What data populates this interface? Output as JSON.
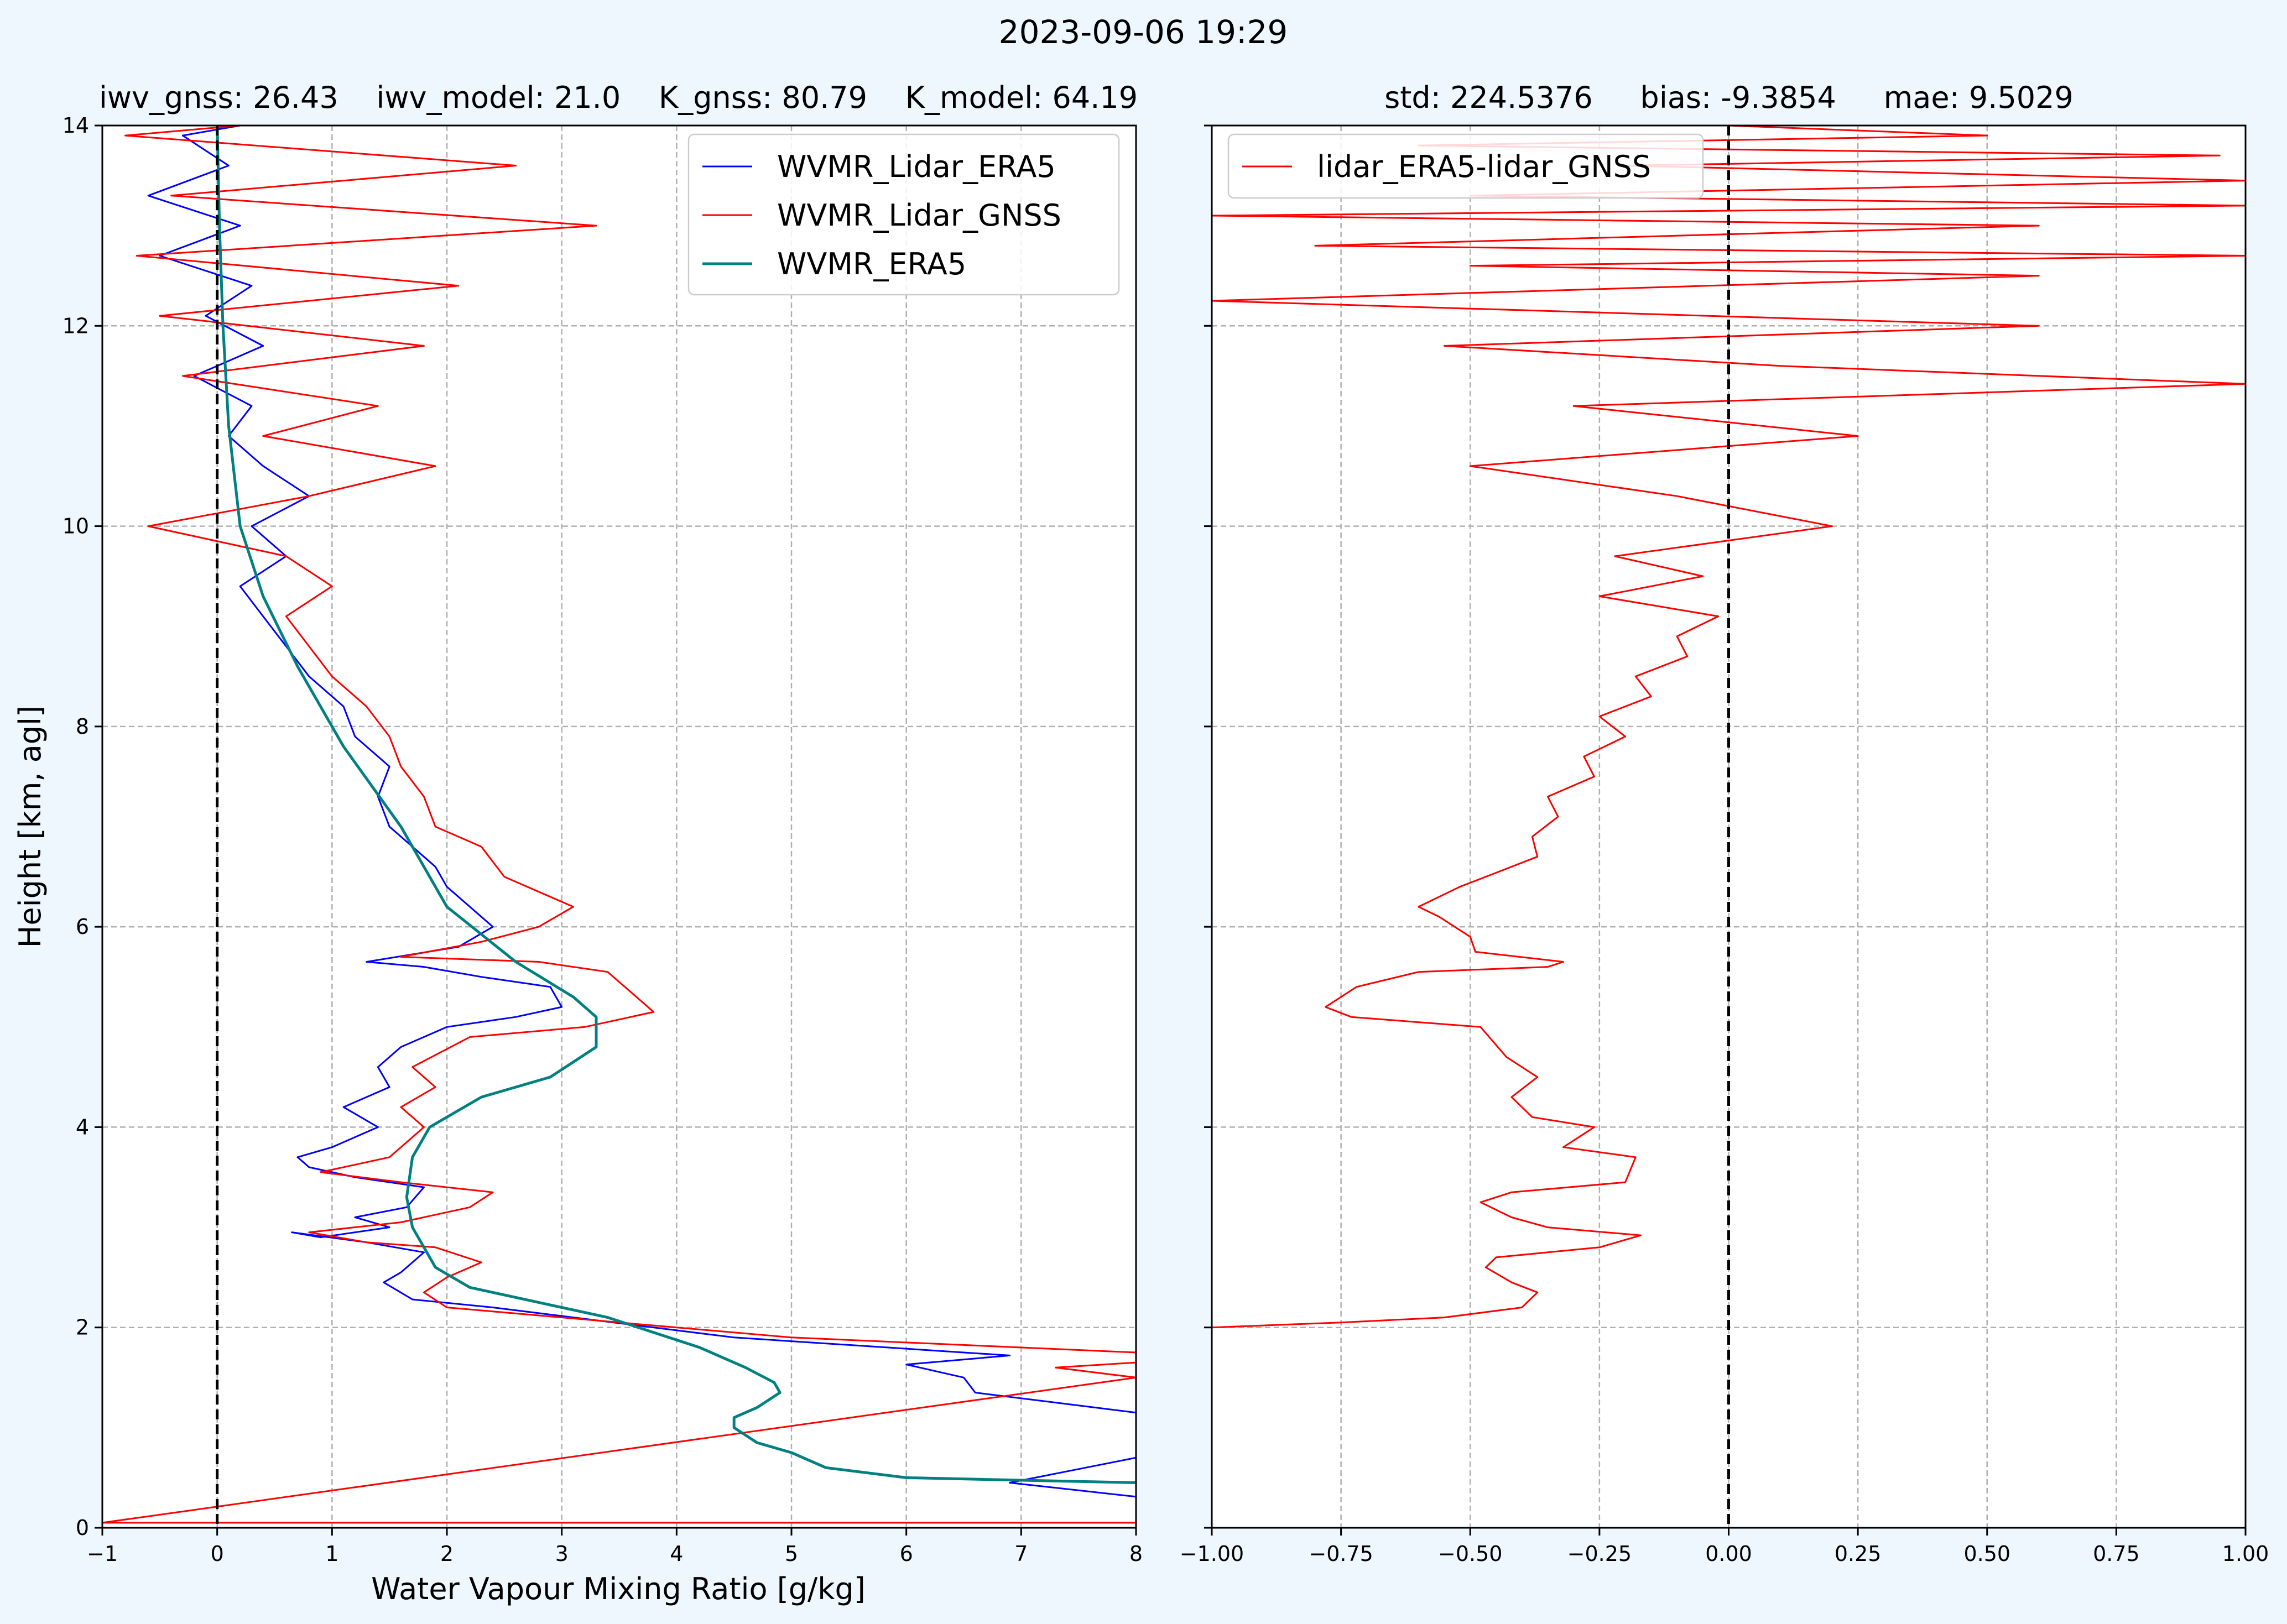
{
  "suptitle": "2023-09-06 19:29",
  "colors": {
    "background": "#eef6fe",
    "lidar_era5": "#0000ff",
    "lidar_gnss": "#ff0000",
    "era5": "#008080",
    "grid": "#b0b0b0"
  },
  "chart_data": [
    {
      "type": "line",
      "title": "iwv_gnss: 26.43    iwv_model: 21.0    K_gnss: 80.79    K_model: 64.19",
      "xlabel": "Water Vapour Mixing Ratio [g/kg]",
      "ylabel": "Height [km, agl]",
      "xlim": [
        -1,
        8
      ],
      "ylim": [
        0,
        14
      ],
      "xticks": [
        "−1",
        "0",
        "1",
        "2",
        "3",
        "4",
        "5",
        "6",
        "7",
        "8"
      ],
      "yticks": [
        "0",
        "2",
        "4",
        "6",
        "8",
        "10",
        "12",
        "14"
      ],
      "grid": true,
      "legend": "top-right",
      "vline_x": 0,
      "series": [
        {
          "name": "WVMR_Lidar_ERA5",
          "color": "#0000ff",
          "points": [
            [
              8.0,
              0.31
            ],
            [
              6.9,
              0.45
            ],
            [
              8.0,
              0.7
            ],
            [
              8.0,
              1.15
            ],
            [
              6.6,
              1.35
            ],
            [
              6.5,
              1.5
            ],
            [
              6.0,
              1.63
            ],
            [
              6.9,
              1.72
            ],
            [
              4.5,
              1.9
            ],
            [
              2.4,
              2.2
            ],
            [
              1.7,
              2.28
            ],
            [
              1.45,
              2.45
            ],
            [
              1.6,
              2.55
            ],
            [
              1.8,
              2.75
            ],
            [
              1.3,
              2.85
            ],
            [
              0.65,
              2.95
            ],
            [
              0.9,
              2.9
            ],
            [
              1.5,
              3.0
            ],
            [
              1.2,
              3.1
            ],
            [
              1.65,
              3.2
            ],
            [
              1.8,
              3.4
            ],
            [
              1.2,
              3.5
            ],
            [
              0.8,
              3.6
            ],
            [
              0.7,
              3.7
            ],
            [
              1.0,
              3.8
            ],
            [
              1.2,
              3.9
            ],
            [
              1.4,
              4.0
            ],
            [
              1.1,
              4.2
            ],
            [
              1.5,
              4.4
            ],
            [
              1.4,
              4.6
            ],
            [
              1.6,
              4.8
            ],
            [
              2.0,
              5.0
            ],
            [
              2.6,
              5.1
            ],
            [
              3.0,
              5.2
            ],
            [
              2.9,
              5.4
            ],
            [
              2.3,
              5.5
            ],
            [
              1.8,
              5.6
            ],
            [
              1.3,
              5.65
            ],
            [
              2.1,
              5.8
            ],
            [
              2.4,
              6.0
            ],
            [
              2.2,
              6.2
            ],
            [
              2.0,
              6.4
            ],
            [
              1.9,
              6.6
            ],
            [
              1.7,
              6.8
            ],
            [
              1.5,
              7.0
            ],
            [
              1.4,
              7.3
            ],
            [
              1.5,
              7.6
            ],
            [
              1.2,
              7.9
            ],
            [
              1.1,
              8.2
            ],
            [
              0.8,
              8.5
            ],
            [
              0.6,
              8.8
            ],
            [
              0.4,
              9.1
            ],
            [
              0.2,
              9.4
            ],
            [
              0.6,
              9.7
            ],
            [
              0.3,
              10.0
            ],
            [
              0.8,
              10.3
            ],
            [
              0.4,
              10.6
            ],
            [
              0.1,
              10.9
            ],
            [
              0.3,
              11.2
            ],
            [
              -0.2,
              11.5
            ],
            [
              0.4,
              11.8
            ],
            [
              -0.1,
              12.1
            ],
            [
              0.3,
              12.4
            ],
            [
              -0.5,
              12.7
            ],
            [
              0.2,
              13.0
            ],
            [
              -0.6,
              13.3
            ],
            [
              0.1,
              13.6
            ],
            [
              -0.3,
              13.9
            ],
            [
              0.2,
              14.0
            ]
          ]
        },
        {
          "name": "WVMR_Lidar_GNSS",
          "color": "#ff0000",
          "points": [
            [
              8.0,
              0.05
            ],
            [
              -1.0,
              0.05
            ],
            [
              8.0,
              1.5
            ],
            [
              7.3,
              1.6
            ],
            [
              8.0,
              1.65
            ],
            [
              8.0,
              1.75
            ],
            [
              5.0,
              1.9
            ],
            [
              3.0,
              2.1
            ],
            [
              2.0,
              2.2
            ],
            [
              1.8,
              2.35
            ],
            [
              2.0,
              2.5
            ],
            [
              2.3,
              2.65
            ],
            [
              1.9,
              2.8
            ],
            [
              1.3,
              2.85
            ],
            [
              0.8,
              2.95
            ],
            [
              1.6,
              3.05
            ],
            [
              2.2,
              3.2
            ],
            [
              2.4,
              3.35
            ],
            [
              1.6,
              3.45
            ],
            [
              0.9,
              3.55
            ],
            [
              1.5,
              3.7
            ],
            [
              1.8,
              4.0
            ],
            [
              1.6,
              4.2
            ],
            [
              1.9,
              4.4
            ],
            [
              1.7,
              4.6
            ],
            [
              2.2,
              4.9
            ],
            [
              3.2,
              5.0
            ],
            [
              3.8,
              5.15
            ],
            [
              3.6,
              5.35
            ],
            [
              3.4,
              5.55
            ],
            [
              2.8,
              5.65
            ],
            [
              1.6,
              5.7
            ],
            [
              2.3,
              5.85
            ],
            [
              2.8,
              6.0
            ],
            [
              3.1,
              6.2
            ],
            [
              2.5,
              6.5
            ],
            [
              2.3,
              6.8
            ],
            [
              1.9,
              7.0
            ],
            [
              1.8,
              7.3
            ],
            [
              1.6,
              7.6
            ],
            [
              1.5,
              7.9
            ],
            [
              1.3,
              8.2
            ],
            [
              1.0,
              8.5
            ],
            [
              0.8,
              8.8
            ],
            [
              0.6,
              9.1
            ],
            [
              1.0,
              9.4
            ],
            [
              0.6,
              9.7
            ],
            [
              -0.6,
              10.0
            ],
            [
              0.8,
              10.3
            ],
            [
              1.9,
              10.6
            ],
            [
              0.4,
              10.9
            ],
            [
              1.4,
              11.2
            ],
            [
              -0.3,
              11.5
            ],
            [
              1.8,
              11.8
            ],
            [
              -0.5,
              12.1
            ],
            [
              2.1,
              12.4
            ],
            [
              -0.7,
              12.7
            ],
            [
              3.3,
              13.0
            ],
            [
              -0.4,
              13.3
            ],
            [
              2.6,
              13.6
            ],
            [
              -0.8,
              13.9
            ],
            [
              0.2,
              14.0
            ]
          ]
        },
        {
          "name": "WVMR_ERA5",
          "color": "#008080",
          "points": [
            [
              8.0,
              0.45
            ],
            [
              6.0,
              0.5
            ],
            [
              5.3,
              0.6
            ],
            [
              5.0,
              0.75
            ],
            [
              4.7,
              0.85
            ],
            [
              4.5,
              1.0
            ],
            [
              4.5,
              1.1
            ],
            [
              4.7,
              1.2
            ],
            [
              4.9,
              1.35
            ],
            [
              4.85,
              1.45
            ],
            [
              4.6,
              1.6
            ],
            [
              4.2,
              1.8
            ],
            [
              3.4,
              2.1
            ],
            [
              2.2,
              2.4
            ],
            [
              1.9,
              2.6
            ],
            [
              1.8,
              2.8
            ],
            [
              1.7,
              3.0
            ],
            [
              1.65,
              3.3
            ],
            [
              1.7,
              3.7
            ],
            [
              1.85,
              4.0
            ],
            [
              2.3,
              4.3
            ],
            [
              2.9,
              4.5
            ],
            [
              3.3,
              4.8
            ],
            [
              3.3,
              5.1
            ],
            [
              3.1,
              5.3
            ],
            [
              2.6,
              5.65
            ],
            [
              2.0,
              6.2
            ],
            [
              1.6,
              7.0
            ],
            [
              1.1,
              7.8
            ],
            [
              0.7,
              8.6
            ],
            [
              0.4,
              9.3
            ],
            [
              0.2,
              10.0
            ],
            [
              0.1,
              11.0
            ],
            [
              0.05,
              12.0
            ],
            [
              0.02,
              13.0
            ],
            [
              0.0,
              14.0
            ]
          ]
        }
      ]
    },
    {
      "type": "line",
      "title": "std: 224.5376     bias: -9.3854     mae: 9.5029",
      "xlim": [
        -1.0,
        1.0
      ],
      "ylim": [
        0,
        14
      ],
      "xticks": [
        "−1.00",
        "−0.75",
        "−0.50",
        "−0.25",
        "0.00",
        "0.25",
        "0.50",
        "0.75",
        "1.00"
      ],
      "grid": true,
      "legend": "top-left",
      "vline_x": 0,
      "series": [
        {
          "name": "lidar_ERA5-lidar_GNSS",
          "color": "#ff0000",
          "points": [
            [
              -1.0,
              2.0
            ],
            [
              -0.75,
              2.05
            ],
            [
              -0.55,
              2.1
            ],
            [
              -0.4,
              2.2
            ],
            [
              -0.37,
              2.35
            ],
            [
              -0.42,
              2.45
            ],
            [
              -0.47,
              2.6
            ],
            [
              -0.45,
              2.7
            ],
            [
              -0.25,
              2.8
            ],
            [
              -0.17,
              2.92
            ],
            [
              -0.35,
              3.0
            ],
            [
              -0.42,
              3.1
            ],
            [
              -0.48,
              3.25
            ],
            [
              -0.42,
              3.35
            ],
            [
              -0.2,
              3.45
            ],
            [
              -0.18,
              3.7
            ],
            [
              -0.32,
              3.8
            ],
            [
              -0.26,
              4.0
            ],
            [
              -0.38,
              4.1
            ],
            [
              -0.42,
              4.3
            ],
            [
              -0.37,
              4.5
            ],
            [
              -0.43,
              4.7
            ],
            [
              -0.48,
              5.0
            ],
            [
              -0.73,
              5.1
            ],
            [
              -0.78,
              5.2
            ],
            [
              -0.72,
              5.4
            ],
            [
              -0.6,
              5.55
            ],
            [
              -0.35,
              5.6
            ],
            [
              -0.32,
              5.65
            ],
            [
              -0.49,
              5.75
            ],
            [
              -0.5,
              5.9
            ],
            [
              -0.56,
              6.1
            ],
            [
              -0.6,
              6.2
            ],
            [
              -0.52,
              6.4
            ],
            [
              -0.47,
              6.5
            ],
            [
              -0.37,
              6.7
            ],
            [
              -0.38,
              6.9
            ],
            [
              -0.33,
              7.1
            ],
            [
              -0.35,
              7.3
            ],
            [
              -0.26,
              7.5
            ],
            [
              -0.28,
              7.7
            ],
            [
              -0.2,
              7.9
            ],
            [
              -0.25,
              8.1
            ],
            [
              -0.15,
              8.3
            ],
            [
              -0.18,
              8.5
            ],
            [
              -0.08,
              8.7
            ],
            [
              -0.1,
              8.9
            ],
            [
              -0.02,
              9.1
            ],
            [
              -0.25,
              9.3
            ],
            [
              -0.05,
              9.5
            ],
            [
              -0.22,
              9.7
            ],
            [
              0.2,
              10.0
            ],
            [
              -0.1,
              10.3
            ],
            [
              -0.5,
              10.6
            ],
            [
              0.25,
              10.9
            ],
            [
              -0.3,
              11.2
            ],
            [
              1.0,
              11.42
            ],
            [
              0.1,
              11.6
            ],
            [
              -0.55,
              11.8
            ],
            [
              0.6,
              12.0
            ],
            [
              -1.0,
              12.25
            ],
            [
              0.6,
              12.5
            ],
            [
              -0.5,
              12.6
            ],
            [
              1.0,
              12.7
            ],
            [
              -0.8,
              12.8
            ],
            [
              0.6,
              13.0
            ],
            [
              -1.0,
              13.1
            ],
            [
              1.0,
              13.2
            ],
            [
              -0.5,
              13.3
            ],
            [
              1.0,
              13.45
            ],
            [
              -0.2,
              13.6
            ],
            [
              0.95,
              13.7
            ],
            [
              -0.6,
              13.8
            ],
            [
              0.5,
              13.9
            ],
            [
              0.0,
              14.0
            ]
          ]
        }
      ]
    }
  ]
}
